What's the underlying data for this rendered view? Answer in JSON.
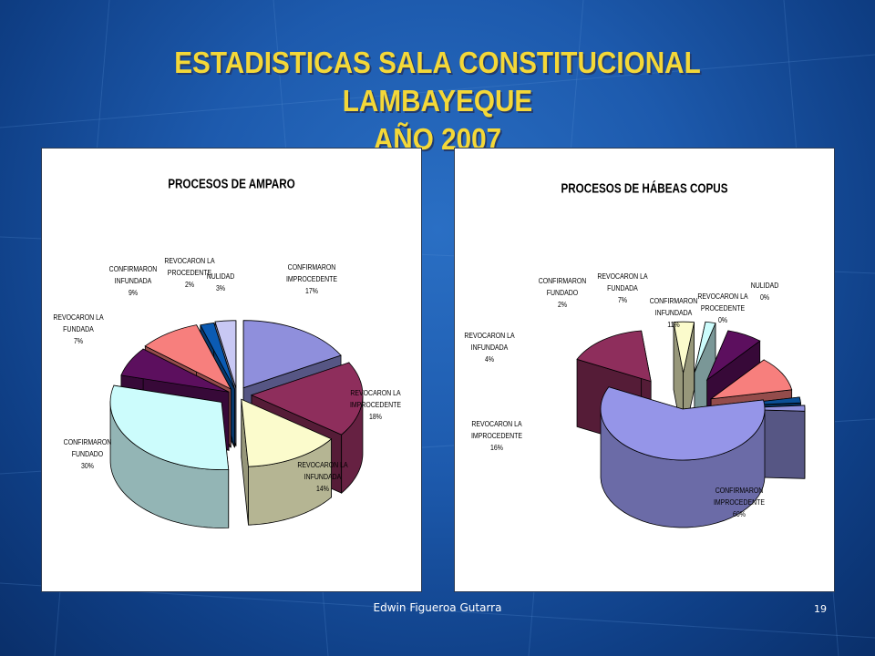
{
  "slide": {
    "title_line1": "ESTADISTICAS SALA CONSTITUCIONAL LAMBAYEQUE",
    "title_line2": "AÑO 2007",
    "footer": "Edwin Figueroa Gutarra",
    "page_number": "19"
  },
  "colors": {
    "title": "#f4d838",
    "background": "#1d5aad"
  },
  "chart_data": [
    {
      "type": "pie",
      "title": "PROCESOS DE AMPARO",
      "slices": [
        {
          "label_lines": [
            "CONFIRMARON",
            "IMPROCEDENTE"
          ],
          "pct": "17%",
          "value": 17,
          "color": "#8f8fdc"
        },
        {
          "label_lines": [
            "REVOCARON LA",
            "IMPROCEDENTE"
          ],
          "pct": "18%",
          "value": 18,
          "color": "#8e2e5c"
        },
        {
          "label_lines": [
            "REVOCARON LA",
            "INFUNDADA"
          ],
          "pct": "14%",
          "value": 14,
          "color": "#fbfbcc"
        },
        {
          "label_lines": [
            "CONFIRMARON",
            "FUNDADO"
          ],
          "pct": "30%",
          "value": 30,
          "color": "#ccfcfc"
        },
        {
          "label_lines": [
            "REVOCARON LA",
            "FUNDADA"
          ],
          "pct": "7%",
          "value": 7,
          "color": "#5c0f5e"
        },
        {
          "label_lines": [
            "CONFIRMARON",
            "INFUNDADA"
          ],
          "pct": "9%",
          "value": 9,
          "color": "#f77f7d"
        },
        {
          "label_lines": [
            "REVOCARON LA",
            "PROCEDENTE"
          ],
          "pct": "2%",
          "value": 2,
          "color": "#0b5bb3"
        },
        {
          "label_lines": [
            "NULIDAD"
          ],
          "pct": "3%",
          "value": 3,
          "color": "#c8c8f4"
        }
      ]
    },
    {
      "type": "pie",
      "title": "PROCESOS DE HÁBEAS COPUS",
      "slices": [
        {
          "label_lines": [
            "CONFIRMARON",
            "IMPROCEDENTE"
          ],
          "pct": "60%",
          "value": 60,
          "color": "#9595e8"
        },
        {
          "label_lines": [
            "REVOCARON LA",
            "IMPROCEDENTE"
          ],
          "pct": "16%",
          "value": 16,
          "color": "#8e2e5c"
        },
        {
          "label_lines": [
            "REVOCARON LA",
            "INFUNDADA"
          ],
          "pct": "4%",
          "value": 4,
          "color": "#fbfbcc"
        },
        {
          "label_lines": [
            "CONFIRMARON",
            "FUNDADO"
          ],
          "pct": "2%",
          "value": 2,
          "color": "#ccfcfc"
        },
        {
          "label_lines": [
            "REVOCARON LA",
            "FUNDADA"
          ],
          "pct": "7%",
          "value": 7,
          "color": "#5c0f5e"
        },
        {
          "label_lines": [
            "CONFIRMARON",
            "INFUNDADA"
          ],
          "pct": "11%",
          "value": 11,
          "color": "#f77f7d"
        },
        {
          "label_lines": [
            "REVOCARON LA",
            "PROCEDENTE"
          ],
          "pct": "0%",
          "value": 0,
          "color": "#0b4f96"
        },
        {
          "label_lines": [
            "NULIDAD"
          ],
          "pct": "0%",
          "value": 0,
          "color": "#8f8fdc"
        }
      ]
    }
  ]
}
